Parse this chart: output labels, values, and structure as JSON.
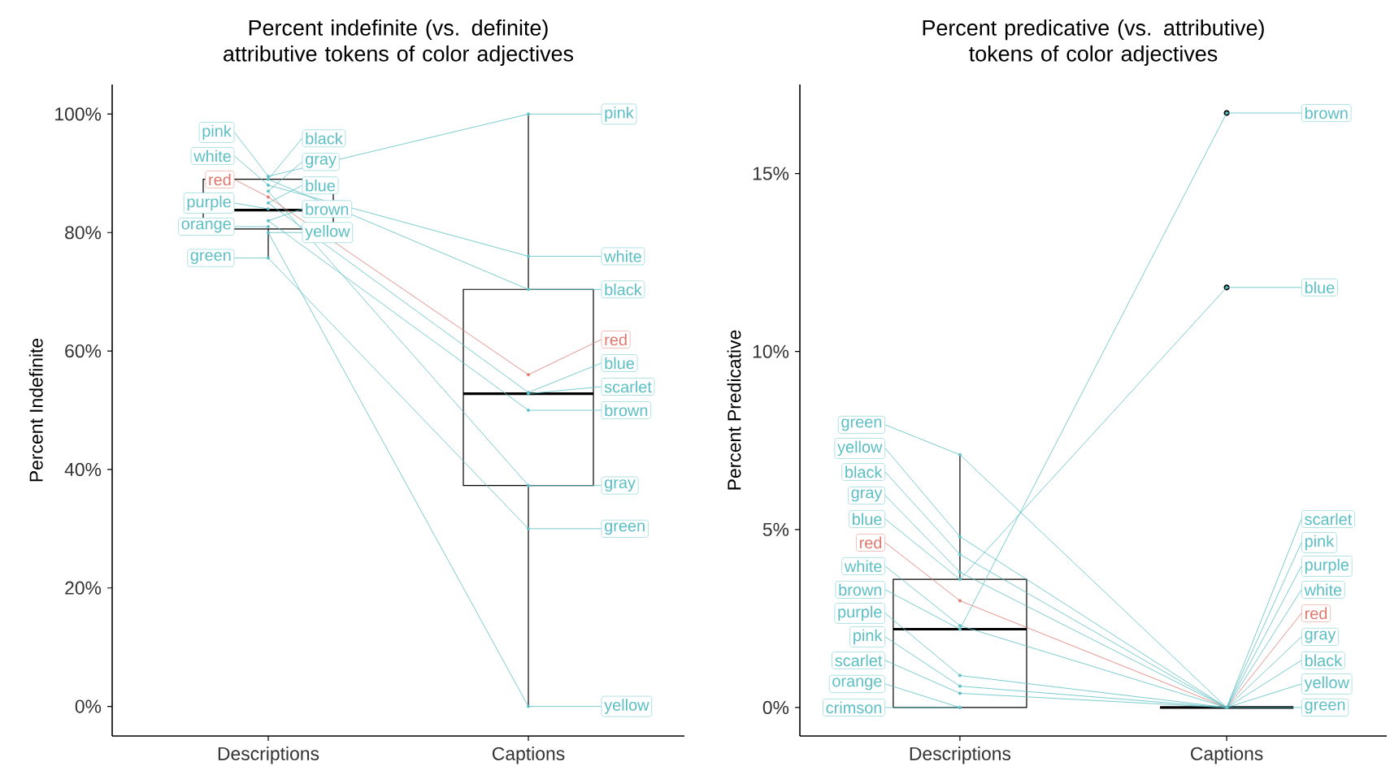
{
  "chart_data": [
    {
      "type": "box",
      "title": "Percent indefinite (vs. definite) attributive tokens of color adjectives",
      "ylabel": "Percent Indefinite",
      "categories": [
        "Descriptions",
        "Captions"
      ],
      "boxes": [
        {
          "low": 75.7,
          "q1": 80.6,
          "median": 83.8,
          "q3": 89,
          "high": 89.5
        },
        {
          "low": 0,
          "q1": 37.3,
          "median": 52.8,
          "q3": 70.4,
          "high": 100
        }
      ],
      "color": "#000000",
      "ylim": [
        -5,
        105
      ],
      "yticks": [
        {
          "value": 0,
          "label": "0%"
        },
        {
          "value": 20,
          "label": "20%"
        },
        {
          "value": 40,
          "label": "40%"
        },
        {
          "value": 60,
          "label": "60%"
        },
        {
          "value": 80,
          "label": "80%"
        },
        {
          "value": 100,
          "label": "100%"
        }
      ],
      "marker": "circle",
      "series": [
        {
          "type": "line",
          "name": "white",
          "color": "#5bbfc4",
          "values": [
            88,
            76
          ]
        },
        {
          "type": "line",
          "name": "black",
          "color": "#5bbfc4",
          "values": [
            89,
            70.4
          ]
        },
        {
          "type": "line",
          "name": "gray",
          "color": "#5bbfc4",
          "values": [
            87,
            37.3
          ]
        },
        {
          "type": "line",
          "name": "red",
          "color": "#e0786e",
          "values": [
            86,
            56
          ]
        },
        {
          "type": "line",
          "name": "pink",
          "color": "#5bbfc4",
          "values": [
            89.5,
            100
          ]
        },
        {
          "type": "line",
          "name": "purple",
          "color": "#5bbfc4",
          "values": [
            84,
            null
          ]
        },
        {
          "type": "line",
          "name": "blue",
          "color": "#5bbfc4",
          "values": [
            85,
            53
          ]
        },
        {
          "type": "line",
          "name": "yellow",
          "color": "#5bbfc4",
          "values": [
            80,
            0
          ]
        },
        {
          "type": "line",
          "name": "brown",
          "color": "#5bbfc4",
          "values": [
            82,
            50
          ]
        },
        {
          "type": "line",
          "name": "green",
          "color": "#5bbfc4",
          "values": [
            75.7,
            30
          ]
        },
        {
          "type": "line",
          "name": "orange",
          "color": "#5bbfc4",
          "values": [
            81,
            null
          ]
        },
        {
          "type": "line",
          "name": "scarlet",
          "color": "#5bbfc4",
          "values": [
            null,
            52.8
          ]
        }
      ]
    },
    {
      "type": "box",
      "title": "Percent predicative (vs. attributive) tokens of color adjectives",
      "ylabel": "Percent Predicative",
      "categories": [
        "Descriptions",
        "Captions"
      ],
      "boxes": [
        {
          "low": 0,
          "q1": 0,
          "median": 2.2,
          "q3": 3.6,
          "high": 7.1
        },
        {
          "low": 0,
          "q1": 0,
          "median": 0,
          "q3": 0,
          "high": 0,
          "outliers": [
            16.7,
            11.8
          ]
        }
      ],
      "color": "#000000",
      "ylim": [
        -0.8,
        17.5
      ],
      "yticks": [
        {
          "value": 0,
          "label": "0%"
        },
        {
          "value": 5,
          "label": "5%"
        },
        {
          "value": 10,
          "label": "10%"
        },
        {
          "value": 15,
          "label": "15%"
        }
      ],
      "marker": "circle",
      "series": [
        {
          "type": "line",
          "name": "green",
          "color": "#5bbfc4",
          "values": [
            7.1,
            0
          ]
        },
        {
          "type": "line",
          "name": "yellow",
          "color": "#5bbfc4",
          "values": [
            4.8,
            0
          ]
        },
        {
          "type": "line",
          "name": "black",
          "color": "#5bbfc4",
          "values": [
            4.3,
            0
          ]
        },
        {
          "type": "line",
          "name": "gray",
          "color": "#5bbfc4",
          "values": [
            3.8,
            0
          ]
        },
        {
          "type": "line",
          "name": "blue",
          "color": "#5bbfc4",
          "values": [
            3.6,
            11.8
          ]
        },
        {
          "type": "line",
          "name": "red",
          "color": "#e0786e",
          "values": [
            3,
            0
          ]
        },
        {
          "type": "line",
          "name": "white",
          "color": "#5bbfc4",
          "values": [
            2.3,
            0
          ]
        },
        {
          "type": "line",
          "name": "brown",
          "color": "#5bbfc4",
          "values": [
            2.2,
            16.7
          ]
        },
        {
          "type": "line",
          "name": "purple",
          "color": "#5bbfc4",
          "values": [
            0.9,
            0
          ]
        },
        {
          "type": "line",
          "name": "pink",
          "color": "#5bbfc4",
          "values": [
            0.6,
            0
          ]
        },
        {
          "type": "line",
          "name": "scarlet",
          "color": "#5bbfc4",
          "values": [
            0.4,
            0
          ]
        },
        {
          "type": "line",
          "name": "crimson",
          "color": "#5bbfc4",
          "values": [
            0,
            null
          ]
        },
        {
          "type": "line",
          "name": "orange",
          "color": "#5bbfc4",
          "values": [
            0,
            null
          ]
        }
      ]
    }
  ]
}
